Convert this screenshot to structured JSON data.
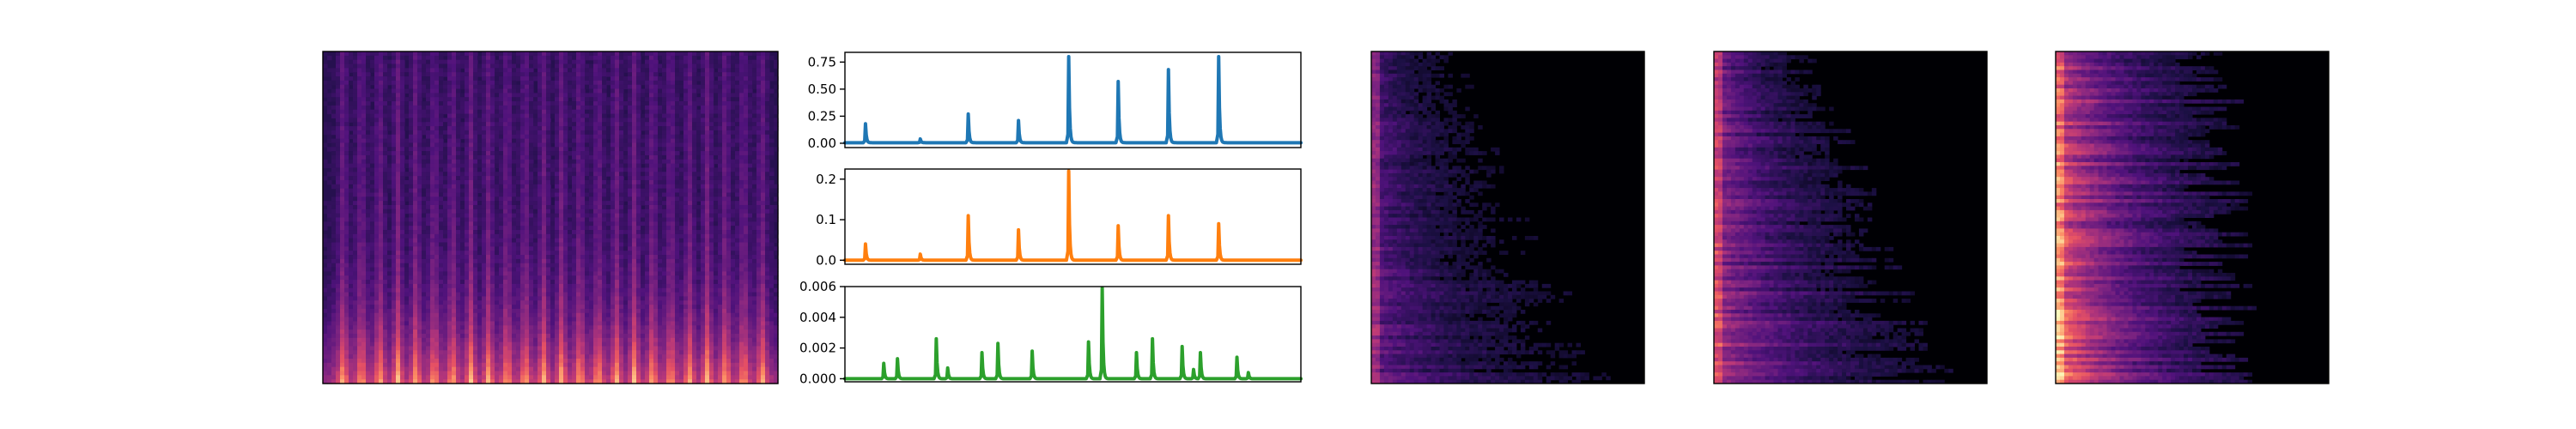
{
  "figure": {
    "background": "#ffffff",
    "colormap": [
      "#000004",
      "#1c1044",
      "#4f127b",
      "#812581",
      "#b5367a",
      "#e55064",
      "#fb8761",
      "#fec287",
      "#fcfdbf"
    ]
  },
  "chart_data": [
    {
      "type": "heatmap",
      "panel": "spectrogram",
      "description_pattern": "broadband vertical onset bands, strong low-frequency energy",
      "onset_columns": [
        0.04,
        0.08,
        0.12,
        0.16,
        0.2,
        0.24,
        0.28,
        0.32,
        0.36,
        0.4,
        0.44,
        0.48,
        0.52,
        0.56,
        0.6,
        0.64,
        0.68,
        0.72,
        0.76,
        0.8,
        0.84,
        0.88,
        0.92,
        0.96
      ],
      "grid": false,
      "axes_visible": false
    },
    {
      "type": "line",
      "panel": "envelope-1",
      "color": "#1f77b4",
      "xlim": [
        0,
        1
      ],
      "ylim": [
        -0.04,
        0.84
      ],
      "yticks": [
        0.0,
        0.25,
        0.5,
        0.75
      ],
      "yticklabels": [
        "0.00",
        "0.25",
        "0.50",
        "0.75"
      ],
      "baseline": 0.005,
      "peaks": [
        {
          "x": 0.045,
          "y": 0.18
        },
        {
          "x": 0.165,
          "y": 0.04
        },
        {
          "x": 0.27,
          "y": 0.27
        },
        {
          "x": 0.38,
          "y": 0.21
        },
        {
          "x": 0.49,
          "y": 0.8
        },
        {
          "x": 0.6,
          "y": 0.57
        },
        {
          "x": 0.71,
          "y": 0.68
        },
        {
          "x": 0.82,
          "y": 0.8
        }
      ],
      "grid": false
    },
    {
      "type": "line",
      "panel": "envelope-2",
      "color": "#ff7f0e",
      "xlim": [
        0,
        1
      ],
      "ylim": [
        -0.01,
        0.225
      ],
      "yticks": [
        0.0,
        0.1,
        0.2
      ],
      "yticklabels": [
        "0.0",
        "0.1",
        "0.2"
      ],
      "baseline": 0.0,
      "peaks": [
        {
          "x": 0.045,
          "y": 0.04
        },
        {
          "x": 0.165,
          "y": 0.015
        },
        {
          "x": 0.27,
          "y": 0.11
        },
        {
          "x": 0.38,
          "y": 0.075
        },
        {
          "x": 0.49,
          "y": 0.22
        },
        {
          "x": 0.6,
          "y": 0.085
        },
        {
          "x": 0.71,
          "y": 0.11
        },
        {
          "x": 0.82,
          "y": 0.09
        }
      ],
      "grid": false
    },
    {
      "type": "line",
      "panel": "envelope-3",
      "color": "#2ca02c",
      "xlim": [
        0,
        1
      ],
      "ylim": [
        -0.0002,
        0.006
      ],
      "yticks": [
        0.0,
        0.002,
        0.004,
        0.006
      ],
      "yticklabels": [
        "0.000",
        "0.002",
        "0.004",
        "0.006"
      ],
      "baseline": 0.0,
      "peaks": [
        {
          "x": 0.085,
          "y": 0.001
        },
        {
          "x": 0.115,
          "y": 0.0013
        },
        {
          "x": 0.2,
          "y": 0.0026
        },
        {
          "x": 0.225,
          "y": 0.0007
        },
        {
          "x": 0.3,
          "y": 0.0017
        },
        {
          "x": 0.335,
          "y": 0.0023
        },
        {
          "x": 0.41,
          "y": 0.0018
        },
        {
          "x": 0.535,
          "y": 0.0024
        },
        {
          "x": 0.565,
          "y": 0.0059
        },
        {
          "x": 0.64,
          "y": 0.0017
        },
        {
          "x": 0.675,
          "y": 0.0026
        },
        {
          "x": 0.74,
          "y": 0.0021
        },
        {
          "x": 0.765,
          "y": 0.0006
        },
        {
          "x": 0.78,
          "y": 0.0017
        },
        {
          "x": 0.86,
          "y": 0.0014
        },
        {
          "x": 0.885,
          "y": 0.0004
        }
      ],
      "grid": false
    },
    {
      "type": "heatmap",
      "panel": "decay-map-1",
      "description_pattern": "energy concentrated at left edge, decaying toward right; extent grows toward bottom",
      "extent_top": 0.25,
      "extent_bottom": 0.72,
      "intensity": 0.35,
      "grid": false,
      "axes_visible": false
    },
    {
      "type": "heatmap",
      "panel": "decay-map-2",
      "description_pattern": "brighter energy along left edge, decaying toward right",
      "extent_top": 0.3,
      "extent_bottom": 0.72,
      "intensity": 0.55,
      "grid": false,
      "axes_visible": false
    },
    {
      "type": "heatmap",
      "panel": "decay-map-3",
      "description_pattern": "strong bright energy along left edge and bottom rows, decaying toward right",
      "extent_top": 0.55,
      "extent_bottom": 0.6,
      "intensity": 0.85,
      "grid": false,
      "axes_visible": false
    }
  ]
}
